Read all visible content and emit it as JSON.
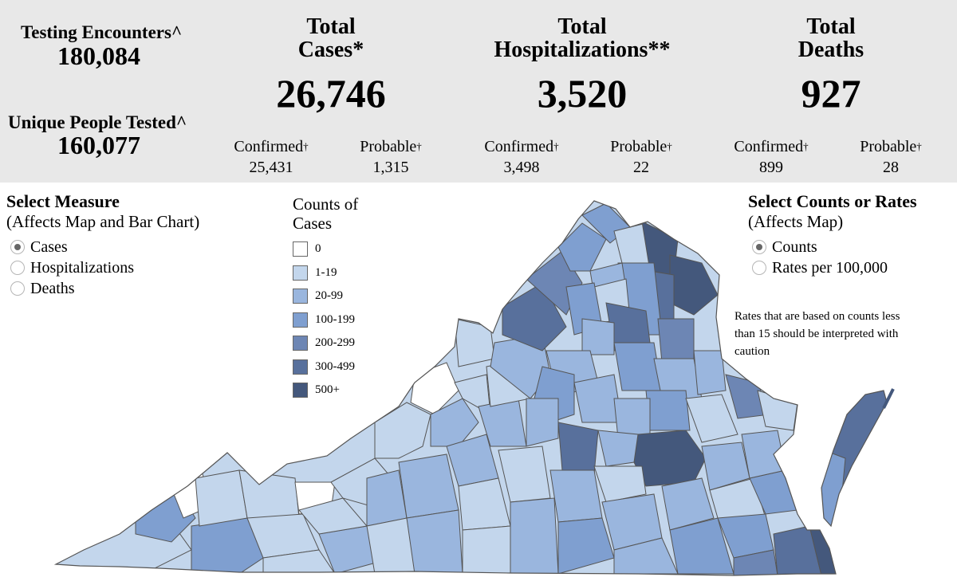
{
  "header": {
    "testing_encounters": {
      "label": "Testing Encounters^",
      "value": "180,084"
    },
    "unique_people": {
      "label": "Unique People Tested^",
      "value": "160,077"
    },
    "cases": {
      "title_line1": "Total",
      "title_line2": "Cases*",
      "value": "26,746",
      "confirmed_label": "Confirmed",
      "confirmed_value": "25,431",
      "probable_label": "Probable",
      "probable_value": "1,315"
    },
    "hospitalizations": {
      "title_line1": "Total",
      "title_line2": "Hospitalizations**",
      "value": "3,520",
      "confirmed_label": "Confirmed",
      "confirmed_value": "3,498",
      "probable_label": "Probable",
      "probable_value": "22"
    },
    "deaths": {
      "title_line1": "Total",
      "title_line2": "Deaths",
      "value": "927",
      "confirmed_label": "Confirmed",
      "confirmed_value": "899",
      "probable_label": "Probable",
      "probable_value": "28"
    },
    "dagger": "†"
  },
  "measure": {
    "title": "Select Measure",
    "subtitle": "(Affects Map and Bar Chart)",
    "options": [
      "Cases",
      "Hospitalizations",
      "Deaths"
    ],
    "selected": "Cases"
  },
  "legend": {
    "title_line1": "Counts of",
    "title_line2": "Cases",
    "items": [
      {
        "label": "0",
        "color": "#ffffff"
      },
      {
        "label": "1-19",
        "color": "#c3d6ec"
      },
      {
        "label": "20-99",
        "color": "#9ab6de"
      },
      {
        "label": "100-199",
        "color": "#7f9fd0"
      },
      {
        "label": "200-299",
        "color": "#6d86b4"
      },
      {
        "label": "300-499",
        "color": "#58709c"
      },
      {
        "label": "500+",
        "color": "#44587c"
      }
    ]
  },
  "rate_select": {
    "title": "Select Counts or Rates",
    "subtitle": "(Affects Map)",
    "options": [
      "Counts",
      "Rates per 100,000"
    ],
    "selected": "Counts"
  },
  "note": {
    "line1": "Rates that are based on counts less",
    "line2": "than 15 should be interpreted with",
    "line3": "caution"
  }
}
